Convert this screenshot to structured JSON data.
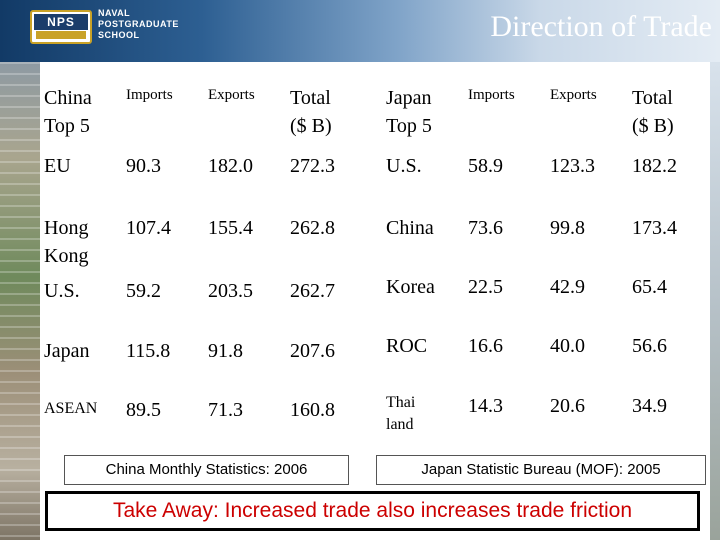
{
  "header": {
    "school_line1": "NAVAL",
    "school_line2": "POSTGRADUATE",
    "school_line3": "SCHOOL",
    "crest_text": "NPS",
    "title": "Direction of Trade"
  },
  "china_table": {
    "title_line1": "China",
    "title_line2": "Top 5",
    "col_imports": "Imports",
    "col_exports": "Exports",
    "col_total_line1": "Total",
    "col_total_line2": "($ B)",
    "rows": [
      {
        "country": "EU",
        "imports": "90.3",
        "exports": "182.0",
        "total": "272.3"
      },
      {
        "country_line1": "Hong",
        "country_line2": "Kong",
        "imports": "107.4",
        "exports": "155.4",
        "total": "262.8"
      },
      {
        "country": "U.S.",
        "imports": "59.2",
        "exports": "203.5",
        "total": "262.7"
      },
      {
        "country": "Japan",
        "imports": "115.8",
        "exports": "91.8",
        "total": "207.6"
      },
      {
        "country": "ASEAN",
        "imports": "89.5",
        "exports": "71.3",
        "total": "160.8"
      }
    ],
    "source": "China Monthly Statistics: 2006"
  },
  "japan_table": {
    "title_line1": "Japan",
    "title_line2": "Top 5",
    "col_imports": "Imports",
    "col_exports": "Exports",
    "col_total_line1": "Total",
    "col_total_line2": "($ B)",
    "rows": [
      {
        "country": "U.S.",
        "imports": "58.9",
        "exports": "123.3",
        "total": "182.2"
      },
      {
        "country": "China",
        "imports": "73.6",
        "exports": "99.8",
        "total": "173.4"
      },
      {
        "country": "Korea",
        "imports": "22.5",
        "exports": "42.9",
        "total": "65.4"
      },
      {
        "country": "ROC",
        "imports": "16.6",
        "exports": "40.0",
        "total": "56.6"
      },
      {
        "country_line1": "Thai",
        "country_line2": "land",
        "imports": "14.3",
        "exports": "20.6",
        "total": "34.9"
      }
    ],
    "source": "Japan Statistic Bureau (MOF): 2005"
  },
  "takeaway": "Take Away: Increased trade also increases trade friction",
  "colors": {
    "header_dark": "#123a66",
    "takeaway_text": "#cc0000"
  }
}
